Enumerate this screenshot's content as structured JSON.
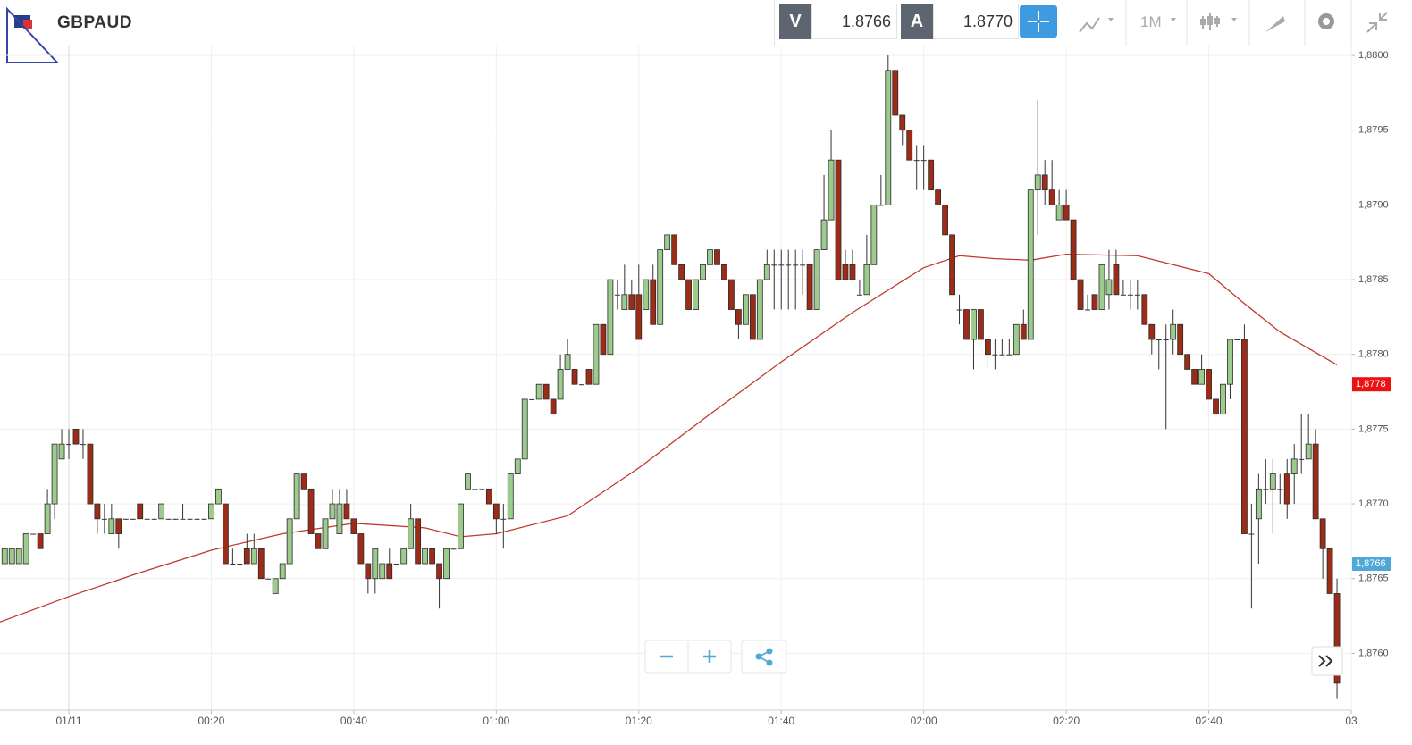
{
  "header": {
    "symbol": "GBPAUD",
    "bid_label": "V",
    "bid": "1.8766",
    "ask_label": "A",
    "ask": "1.8770",
    "timeframe": "1M"
  },
  "chart_data": {
    "type": "candlestick",
    "x": [
      -9,
      -8,
      -7,
      -6,
      -5,
      -4,
      -3,
      -2,
      -1,
      0,
      1,
      2,
      3,
      4,
      5,
      6,
      7,
      8,
      9,
      10,
      11,
      12,
      13,
      14,
      15,
      16,
      17,
      18,
      19,
      20,
      21,
      22,
      23,
      24,
      25,
      26,
      27,
      28,
      29,
      30,
      31,
      32,
      33,
      34,
      35,
      36,
      37,
      38,
      39,
      40,
      41,
      42,
      43,
      44,
      45,
      46,
      47,
      48,
      49,
      50,
      51,
      52,
      53,
      54,
      55,
      56,
      57,
      58,
      59,
      60,
      61,
      62,
      63,
      64,
      65,
      66,
      67,
      68,
      69,
      70,
      71,
      72,
      73,
      74,
      75,
      76,
      77,
      78,
      79,
      80,
      81,
      82,
      83,
      84,
      85,
      86,
      87,
      88,
      89,
      90,
      91,
      92,
      93,
      94,
      95,
      96,
      97,
      98,
      99,
      100,
      101,
      102,
      103,
      104,
      105,
      106,
      107,
      108,
      109,
      110,
      111,
      112,
      113,
      114,
      115,
      116,
      117,
      118,
      119,
      120,
      121,
      122,
      123,
      124,
      125,
      126,
      127,
      128,
      129,
      130,
      131,
      132,
      133,
      134,
      135,
      136,
      137,
      138,
      139,
      140,
      141,
      142,
      143,
      144,
      145,
      146,
      147,
      148,
      149,
      150,
      151,
      152,
      153,
      154,
      155,
      156,
      157,
      158,
      159,
      160,
      161,
      162,
      163,
      164,
      165,
      166,
      167,
      168,
      169,
      170,
      171,
      172,
      173,
      174,
      175,
      176,
      177,
      178
    ],
    "ohlc": [
      [
        1.8766,
        1.8767,
        1.8766,
        1.8767
      ],
      [
        1.8766,
        1.8767,
        1.8766,
        1.8767
      ],
      [
        1.8766,
        1.8767,
        1.8766,
        1.8767
      ],
      [
        1.8766,
        1.8768,
        1.8766,
        1.8768
      ],
      [
        1.8768,
        1.8768,
        1.8768,
        1.8768
      ],
      [
        1.8768,
        1.8768,
        1.8767,
        1.8767
      ],
      [
        1.8768,
        1.8771,
        1.8768,
        1.877
      ],
      [
        1.877,
        1.8774,
        1.8769,
        1.8774
      ],
      [
        1.8773,
        1.8775,
        1.8773,
        1.8774
      ],
      [
        1.8774,
        1.8775,
        1.8773,
        1.8774
      ],
      [
        1.8775,
        1.8775,
        1.8774,
        1.8774
      ],
      [
        1.8774,
        1.8775,
        1.8773,
        1.8774
      ],
      [
        1.8774,
        1.8774,
        1.877,
        1.877
      ],
      [
        1.877,
        1.877,
        1.8768,
        1.8769
      ],
      [
        1.8769,
        1.877,
        1.8768,
        1.8769
      ],
      [
        1.8768,
        1.877,
        1.8768,
        1.8769
      ],
      [
        1.8769,
        1.8769,
        1.8767,
        1.8768
      ],
      [
        1.8769,
        1.8769,
        1.8769,
        1.8769
      ],
      [
        1.8769,
        1.8769,
        1.8769,
        1.8769
      ],
      [
        1.877,
        1.877,
        1.8769,
        1.8769
      ],
      [
        1.8769,
        1.8769,
        1.8769,
        1.8769
      ],
      [
        1.8769,
        1.8769,
        1.8769,
        1.8769
      ],
      [
        1.8769,
        1.877,
        1.8769,
        1.877
      ],
      [
        1.8769,
        1.8769,
        1.8769,
        1.8769
      ],
      [
        1.8769,
        1.8769,
        1.8769,
        1.8769
      ],
      [
        1.8769,
        1.877,
        1.8769,
        1.8769
      ],
      [
        1.8769,
        1.8769,
        1.8769,
        1.8769
      ],
      [
        1.8769,
        1.8769,
        1.8769,
        1.8769
      ],
      [
        1.8769,
        1.8769,
        1.8769,
        1.8769
      ],
      [
        1.8769,
        1.877,
        1.8769,
        1.877
      ],
      [
        1.877,
        1.8771,
        1.877,
        1.8771
      ],
      [
        1.877,
        1.877,
        1.8766,
        1.8766
      ],
      [
        1.8766,
        1.8767,
        1.8766,
        1.8766
      ],
      [
        1.8766,
        1.8766,
        1.8766,
        1.8766
      ],
      [
        1.8767,
        1.8768,
        1.8766,
        1.8766
      ],
      [
        1.8766,
        1.8768,
        1.8766,
        1.8767
      ],
      [
        1.8767,
        1.8767,
        1.8765,
        1.8765
      ],
      [
        1.8765,
        1.8765,
        1.8765,
        1.8765
      ],
      [
        1.8764,
        1.8765,
        1.8764,
        1.8765
      ],
      [
        1.8765,
        1.8766,
        1.8765,
        1.8766
      ],
      [
        1.8766,
        1.8769,
        1.8766,
        1.8769
      ],
      [
        1.8769,
        1.8772,
        1.8769,
        1.8772
      ],
      [
        1.8772,
        1.8772,
        1.8771,
        1.8771
      ],
      [
        1.8771,
        1.8771,
        1.8768,
        1.8768
      ],
      [
        1.8768,
        1.8768,
        1.8767,
        1.8767
      ],
      [
        1.8767,
        1.8769,
        1.8767,
        1.8769
      ],
      [
        1.8769,
        1.8771,
        1.8769,
        1.877
      ],
      [
        1.8768,
        1.8771,
        1.8768,
        1.877
      ],
      [
        1.877,
        1.8771,
        1.8769,
        1.8769
      ],
      [
        1.8769,
        1.8769,
        1.8768,
        1.8768
      ],
      [
        1.8768,
        1.8768,
        1.8766,
        1.8766
      ],
      [
        1.8766,
        1.8766,
        1.8764,
        1.8765
      ],
      [
        1.8765,
        1.8767,
        1.8764,
        1.8767
      ],
      [
        1.8765,
        1.8766,
        1.8765,
        1.8766
      ],
      [
        1.8766,
        1.8767,
        1.8765,
        1.8765
      ],
      [
        1.8766,
        1.8766,
        1.8766,
        1.8766
      ],
      [
        1.8766,
        1.8767,
        1.8766,
        1.8767
      ],
      [
        1.8767,
        1.877,
        1.8767,
        1.8769
      ],
      [
        1.8769,
        1.8769,
        1.8766,
        1.8766
      ],
      [
        1.8766,
        1.8767,
        1.8766,
        1.8767
      ],
      [
        1.8767,
        1.8767,
        1.8766,
        1.8766
      ],
      [
        1.8766,
        1.8766,
        1.8763,
        1.8765
      ],
      [
        1.8765,
        1.8767,
        1.8765,
        1.8767
      ],
      [
        1.8767,
        1.8767,
        1.8767,
        1.8767
      ],
      [
        1.8767,
        1.877,
        1.8767,
        1.877
      ],
      [
        1.8771,
        1.8772,
        1.8771,
        1.8772
      ],
      [
        1.8771,
        1.8771,
        1.8771,
        1.8771
      ],
      [
        1.8771,
        1.8771,
        1.8771,
        1.8771
      ],
      [
        1.8771,
        1.8771,
        1.877,
        1.877
      ],
      [
        1.877,
        1.877,
        1.8768,
        1.8769
      ],
      [
        1.8769,
        1.877,
        1.8767,
        1.8769
      ],
      [
        1.8769,
        1.8772,
        1.8769,
        1.8772
      ],
      [
        1.8772,
        1.8773,
        1.8772,
        1.8773
      ],
      [
        1.8773,
        1.8777,
        1.8773,
        1.8777
      ],
      [
        1.8777,
        1.8777,
        1.8777,
        1.8777
      ],
      [
        1.8777,
        1.8778,
        1.8777,
        1.8778
      ],
      [
        1.8778,
        1.8778,
        1.8777,
        1.8777
      ],
      [
        1.8777,
        1.8777,
        1.8776,
        1.8776
      ],
      [
        1.8777,
        1.878,
        1.8777,
        1.8779
      ],
      [
        1.8779,
        1.8781,
        1.8779,
        1.878
      ],
      [
        1.8779,
        1.8779,
        1.8778,
        1.8778
      ],
      [
        1.8778,
        1.8778,
        1.8778,
        1.8778
      ],
      [
        1.8779,
        1.8779,
        1.8778,
        1.8778
      ],
      [
        1.8778,
        1.8782,
        1.8778,
        1.8782
      ],
      [
        1.8782,
        1.8782,
        1.878,
        1.878
      ],
      [
        1.878,
        1.8785,
        1.878,
        1.8785
      ],
      [
        1.8784,
        1.8785,
        1.8783,
        1.8784
      ],
      [
        1.8783,
        1.8786,
        1.8783,
        1.8784
      ],
      [
        1.8784,
        1.8785,
        1.8783,
        1.8783
      ],
      [
        1.8784,
        1.8786,
        1.8781,
        1.8781
      ],
      [
        1.8783,
        1.8785,
        1.8783,
        1.8785
      ],
      [
        1.8785,
        1.8786,
        1.8782,
        1.8782
      ],
      [
        1.8782,
        1.8787,
        1.8782,
        1.8787
      ],
      [
        1.8787,
        1.8788,
        1.8787,
        1.8788
      ],
      [
        1.8788,
        1.8788,
        1.8786,
        1.8786
      ],
      [
        1.8786,
        1.8786,
        1.8785,
        1.8785
      ],
      [
        1.8785,
        1.8785,
        1.8783,
        1.8783
      ],
      [
        1.8783,
        1.8785,
        1.8783,
        1.8785
      ],
      [
        1.8785,
        1.8786,
        1.8785,
        1.8786
      ],
      [
        1.8786,
        1.8787,
        1.8786,
        1.8787
      ],
      [
        1.8787,
        1.8787,
        1.8786,
        1.8786
      ],
      [
        1.8786,
        1.8786,
        1.8785,
        1.8785
      ],
      [
        1.8785,
        1.8785,
        1.8783,
        1.8783
      ],
      [
        1.8783,
        1.8783,
        1.8781,
        1.8782
      ],
      [
        1.8782,
        1.8784,
        1.8782,
        1.8784
      ],
      [
        1.8784,
        1.8784,
        1.8781,
        1.8781
      ],
      [
        1.8781,
        1.8785,
        1.8781,
        1.8785
      ],
      [
        1.8785,
        1.8787,
        1.8785,
        1.8786
      ],
      [
        1.8786,
        1.8787,
        1.8783,
        1.8786
      ],
      [
        1.8786,
        1.8787,
        1.8783,
        1.8786
      ],
      [
        1.8786,
        1.8787,
        1.8783,
        1.8786
      ],
      [
        1.8786,
        1.8787,
        1.8783,
        1.8786
      ],
      [
        1.8786,
        1.8787,
        1.8784,
        1.8786
      ],
      [
        1.8786,
        1.8786,
        1.8783,
        1.8783
      ],
      [
        1.8783,
        1.8787,
        1.8783,
        1.8787
      ],
      [
        1.8787,
        1.8792,
        1.8787,
        1.8789
      ],
      [
        1.8789,
        1.8795,
        1.8789,
        1.8793
      ],
      [
        1.8793,
        1.8793,
        1.8785,
        1.8785
      ],
      [
        1.8786,
        1.8787,
        1.8785,
        1.8785
      ],
      [
        1.8786,
        1.8787,
        1.8785,
        1.8785
      ],
      [
        1.8784,
        1.8785,
        1.8784,
        1.8784
      ],
      [
        1.8784,
        1.8788,
        1.8784,
        1.8786
      ],
      [
        1.8786,
        1.879,
        1.8786,
        1.879
      ],
      [
        1.879,
        1.8792,
        1.879,
        1.879
      ],
      [
        1.879,
        1.88,
        1.879,
        1.8799
      ],
      [
        1.8799,
        1.8799,
        1.8796,
        1.8796
      ],
      [
        1.8796,
        1.8796,
        1.8794,
        1.8795
      ],
      [
        1.8795,
        1.8795,
        1.8793,
        1.8793
      ],
      [
        1.8793,
        1.8794,
        1.8791,
        1.8793
      ],
      [
        1.8793,
        1.8794,
        1.8791,
        1.8793
      ],
      [
        1.8793,
        1.8793,
        1.8791,
        1.8791
      ],
      [
        1.8791,
        1.8791,
        1.879,
        1.879
      ],
      [
        1.879,
        1.879,
        1.8788,
        1.8788
      ],
      [
        1.8788,
        1.8788,
        1.8784,
        1.8784
      ],
      [
        1.8783,
        1.8784,
        1.8782,
        1.8783
      ],
      [
        1.8783,
        1.8783,
        1.8781,
        1.8781
      ],
      [
        1.8781,
        1.8783,
        1.8779,
        1.8783
      ],
      [
        1.8783,
        1.8783,
        1.8781,
        1.8781
      ],
      [
        1.8781,
        1.8781,
        1.8779,
        1.878
      ],
      [
        1.878,
        1.8781,
        1.8779,
        1.878
      ],
      [
        1.878,
        1.8781,
        1.878,
        1.878
      ],
      [
        1.878,
        1.8781,
        1.878,
        1.878
      ],
      [
        1.878,
        1.8782,
        1.878,
        1.8782
      ],
      [
        1.8782,
        1.8783,
        1.8781,
        1.8781
      ],
      [
        1.8781,
        1.8791,
        1.8781,
        1.8791
      ],
      [
        1.8791,
        1.8797,
        1.8788,
        1.8792
      ],
      [
        1.8792,
        1.8793,
        1.879,
        1.8791
      ],
      [
        1.8791,
        1.8793,
        1.879,
        1.879
      ],
      [
        1.8789,
        1.8791,
        1.8789,
        1.879
      ],
      [
        1.879,
        1.8791,
        1.8789,
        1.8789
      ],
      [
        1.8789,
        1.8789,
        1.8785,
        1.8785
      ],
      [
        1.8785,
        1.8785,
        1.8783,
        1.8783
      ],
      [
        1.8783,
        1.8784,
        1.8783,
        1.8783
      ],
      [
        1.8784,
        1.8784,
        1.8783,
        1.8783
      ],
      [
        1.8783,
        1.8786,
        1.8783,
        1.8786
      ],
      [
        1.8784,
        1.8787,
        1.8783,
        1.8785
      ],
      [
        1.8786,
        1.8787,
        1.8784,
        1.8784
      ],
      [
        1.8784,
        1.8785,
        1.8784,
        1.8784
      ],
      [
        1.8784,
        1.8785,
        1.8783,
        1.8784
      ],
      [
        1.8784,
        1.8785,
        1.8783,
        1.8784
      ],
      [
        1.8784,
        1.8784,
        1.8782,
        1.8782
      ],
      [
        1.8782,
        1.8782,
        1.878,
        1.8781
      ],
      [
        1.8781,
        1.8781,
        1.8779,
        1.8781
      ],
      [
        1.8781,
        1.8782,
        1.8775,
        1.8781
      ],
      [
        1.8781,
        1.8783,
        1.878,
        1.8782
      ],
      [
        1.8782,
        1.8782,
        1.878,
        1.878
      ],
      [
        1.878,
        1.878,
        1.8779,
        1.8779
      ],
      [
        1.8779,
        1.8779,
        1.8778,
        1.8778
      ],
      [
        1.8778,
        1.878,
        1.8778,
        1.8779
      ],
      [
        1.8779,
        1.8779,
        1.8777,
        1.8777
      ],
      [
        1.8777,
        1.8777,
        1.8776,
        1.8776
      ],
      [
        1.8776,
        1.8778,
        1.8776,
        1.8778
      ],
      [
        1.8778,
        1.8781,
        1.8777,
        1.8781
      ],
      [
        1.8781,
        1.8781,
        1.8781,
        1.8781
      ],
      [
        1.8781,
        1.8782,
        1.8768,
        1.8768
      ],
      [
        1.8768,
        1.877,
        1.8763,
        1.8768
      ],
      [
        1.8769,
        1.8772,
        1.8766,
        1.8771
      ],
      [
        1.8771,
        1.8773,
        1.877,
        1.8771
      ],
      [
        1.8771,
        1.8773,
        1.8768,
        1.8772
      ],
      [
        1.8771,
        1.8772,
        1.877,
        1.8771
      ],
      [
        1.8772,
        1.8773,
        1.8769,
        1.877
      ],
      [
        1.8772,
        1.8774,
        1.877,
        1.8773
      ],
      [
        1.8773,
        1.8776,
        1.8772,
        1.8773
      ],
      [
        1.8773,
        1.8776,
        1.8773,
        1.8774
      ],
      [
        1.8774,
        1.8775,
        1.8769,
        1.8769
      ],
      [
        1.8769,
        1.8769,
        1.8765,
        1.8767
      ],
      [
        1.8767,
        1.8767,
        1.8764,
        1.8764
      ],
      [
        1.8764,
        1.8765,
        1.8757,
        1.8758
      ]
    ],
    "up_color": "#9dcb8d",
    "down_color": "#9c2b18",
    "moving_average": {
      "color": "#c0392b",
      "x": [
        -9.66,
        0,
        10,
        20,
        30,
        40,
        50,
        55,
        60,
        70,
        80,
        90,
        100,
        110,
        120,
        125,
        130,
        135,
        140,
        150,
        160,
        165,
        170,
        178
      ],
      "values": [
        1.87621,
        1.87638,
        1.87654,
        1.87669,
        1.8768,
        1.87687,
        1.87684,
        1.87678,
        1.8768,
        1.87692,
        1.87724,
        1.8776,
        1.87795,
        1.87828,
        1.87858,
        1.87866,
        1.87864,
        1.87863,
        1.87867,
        1.87866,
        1.87854,
        1.87834,
        1.87815,
        1.87793
      ]
    },
    "price_markers": [
      {
        "value": 1.8778,
        "label": "1,8778",
        "color": "#ee1111"
      },
      {
        "value": 1.8766,
        "label": "1,8766",
        "color": "#4fa8d8"
      }
    ],
    "xlim": [
      -9.66,
      180
    ],
    "ylim": [
      1.87562,
      1.88006
    ],
    "xticks": [
      {
        "value": 0,
        "label": "01/11"
      },
      {
        "value": 20,
        "label": "00:20"
      },
      {
        "value": 40,
        "label": "00:40"
      },
      {
        "value": 60,
        "label": "01:00"
      },
      {
        "value": 80,
        "label": "01:20"
      },
      {
        "value": 100,
        "label": "01:40"
      },
      {
        "value": 120,
        "label": "02:00"
      },
      {
        "value": 140,
        "label": "02:20"
      },
      {
        "value": 160,
        "label": "02:40"
      },
      {
        "value": 180,
        "label": "03"
      }
    ],
    "yticks": [
      {
        "value": 1.876,
        "label": "1,8760"
      },
      {
        "value": 1.8765,
        "label": "1,8765"
      },
      {
        "value": 1.877,
        "label": "1,8770"
      },
      {
        "value": 1.8775,
        "label": "1,8775"
      },
      {
        "value": 1.878,
        "label": "1,8780"
      },
      {
        "value": 1.8785,
        "label": "1,8785"
      },
      {
        "value": 1.879,
        "label": "1,8790"
      },
      {
        "value": 1.8795,
        "label": "1,8795"
      },
      {
        "value": 1.88,
        "label": "1,8800"
      }
    ],
    "grid": true
  }
}
